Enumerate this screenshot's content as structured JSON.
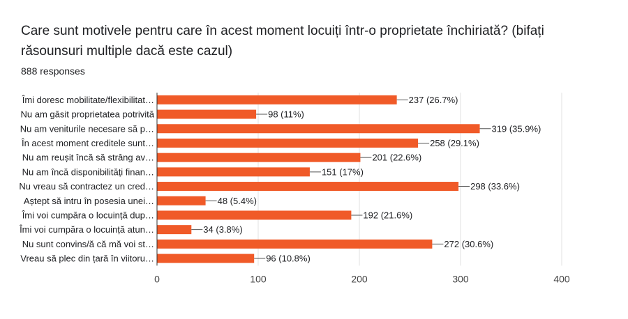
{
  "header": {
    "title": "Care sunt motivele pentru care în acest moment locuiți într-o proprietate închiriată? (bifați răsounsuri multiple dacă este cazul)",
    "responses": "888 responses"
  },
  "chart_data": {
    "type": "bar",
    "orientation": "horizontal",
    "categories": [
      "Îmi doresc mobilitate/flexibilitat…",
      "Nu am găsit proprietatea potrivită",
      "Nu am veniturile necesare să p…",
      "În acest moment creditele sunt…",
      "Nu am reușit încă să strâng av…",
      "Nu am încă disponibilități finan…",
      "Nu vreau să contractez un cred…",
      "Aștept să intru în posesia unei…",
      "Îmi voi cumpăra o locuință dup…",
      "Îmi voi cumpăra o locuință atun…",
      "Nu sunt convins/ă că mă voi st…",
      "Vreau să plec din țară în viitoru…"
    ],
    "values": [
      237,
      98,
      319,
      258,
      201,
      151,
      298,
      48,
      192,
      34,
      272,
      96
    ],
    "value_labels": [
      "237 (26.7%)",
      "98 (11%)",
      "319 (35.9%)",
      "258 (29.1%)",
      "201 (22.6%)",
      "151 (17%)",
      "298 (33.6%)",
      "48 (5.4%)",
      "192 (21.6%)",
      "34 (3.8%)",
      "272 (30.6%)",
      "96 (10.8%)"
    ],
    "xlim": [
      0,
      400
    ],
    "xticks": [
      0,
      100,
      200,
      300,
      400
    ],
    "bar_color": "#f05a28",
    "grid": true
  }
}
